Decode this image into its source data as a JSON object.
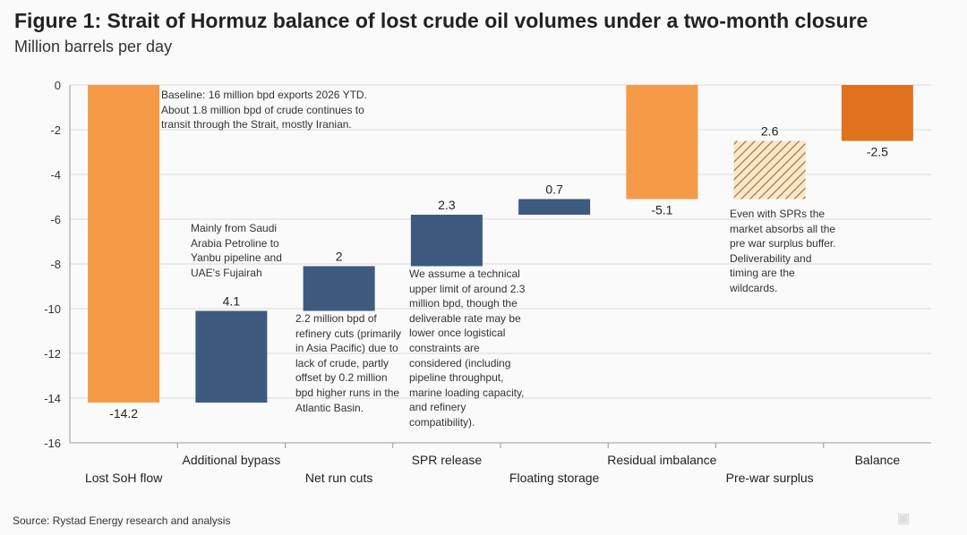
{
  "chart_data": {
    "type": "waterfall",
    "title": "Figure 1: Strait of Hormuz balance of lost crude oil volumes under a two-month closure",
    "ylabel": "Million barrels per day",
    "ylim": [
      -16,
      0
    ],
    "yticks": [
      "0",
      "-2",
      "-4",
      "-6",
      "-8",
      "-10",
      "-12",
      "-14",
      "-16"
    ],
    "yvals": [
      0,
      -2,
      -4,
      -6,
      -8,
      -10,
      -12,
      -14,
      -16
    ],
    "grid": true,
    "bars": [
      {
        "category": "Lost SoH flow",
        "start": 0,
        "end": -14.2,
        "label": "-14.2",
        "style": "orange",
        "label_pos": "below"
      },
      {
        "category": "Additional bypass",
        "start": -14.2,
        "end": -10.1,
        "label": "4.1",
        "style": "blue",
        "label_pos": "above"
      },
      {
        "category": "Net run cuts",
        "start": -10.1,
        "end": -8.1,
        "label": "2",
        "style": "blue",
        "label_pos": "above"
      },
      {
        "category": "SPR release",
        "start": -8.1,
        "end": -5.8,
        "label": "2.3",
        "style": "blue",
        "label_pos": "above"
      },
      {
        "category": "Floating storage",
        "start": -5.8,
        "end": -5.1,
        "label": "0.7",
        "style": "blue",
        "label_pos": "above"
      },
      {
        "category": "Residual  imbalance",
        "start": 0,
        "end": -5.1,
        "label": "-5.1",
        "style": "orange",
        "label_pos": "below"
      },
      {
        "category": "Pre-war surplus",
        "start": -5.1,
        "end": -2.5,
        "label": "2.6",
        "style": "hatch",
        "label_pos": "above"
      },
      {
        "category": "Balance",
        "start": 0,
        "end": -2.5,
        "label": "-2.5",
        "style": "darkorange",
        "label_pos": "below"
      }
    ],
    "colors": {
      "orange": "#f59a47",
      "blue": "#3f5a7f",
      "darkorange": "#e0711f",
      "hatch": "#a08060",
      "grid": "#d9d9d9"
    },
    "annotations": [
      "Baseline: 16 million bpd exports 2026 YTD. About 1.8 million bpd of crude continues to transit through the Strait, mostly Iranian.",
      "Mainly from Saudi Arabia Petroline to Yanbu pipeline and UAE's Fujairah",
      "2.2 million bpd of refinery cuts (primarily in Asia Pacific) due to lack of crude, partly offset by 0.2 million bpd higher runs in the Atlantic Basin.",
      "We assume a technical upper limit of around 2.3 million bpd, though the deliverable rate may be lower once logistical constraints are considered (including pipeline throughput, marine loading capacity, and refinery compatibility).",
      "Even with SPRs the market absorbs all the pre war surplus buffer. Deliverability and timing are the wildcards."
    ]
  },
  "source": "Source: Rystad Energy research and analysis",
  "watermark": "格隆汇"
}
